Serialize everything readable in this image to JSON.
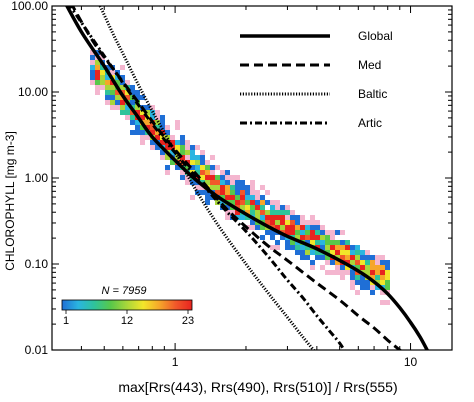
{
  "chart_data": {
    "type": "scatter",
    "xlog": true,
    "ylog": true,
    "xlim": [
      0.3,
      15
    ],
    "ylim": [
      0.01,
      100
    ],
    "x_ticks": [
      1,
      10
    ],
    "x_tick_labels": [
      "1",
      "10"
    ],
    "y_ticks": [
      0.01,
      0.1,
      1,
      10,
      100
    ],
    "y_tick_labels": [
      "0.01",
      "0.10",
      "1.00",
      "10.00",
      "100.00"
    ],
    "xlabel": "max[Rrs(443), Rrs(490), Rrs(510)] / Rrs(555)",
    "ylabel": "CHLOROPHYLL [mg m-3]",
    "legend_position": "top-right",
    "series": [
      {
        "name": "Global",
        "style": "solid",
        "x": [
          0.33,
          0.4,
          0.5,
          0.6,
          0.7,
          0.8,
          1.0,
          1.2,
          1.5,
          2.0,
          2.5,
          3.0,
          4.0,
          5.0,
          6.0,
          7.0,
          8.0,
          9.0,
          10.0,
          11.0,
          12.0
        ],
        "y": [
          130,
          50,
          20,
          9,
          5,
          3,
          1.6,
          1.0,
          0.62,
          0.38,
          0.27,
          0.21,
          0.15,
          0.11,
          0.083,
          0.062,
          0.045,
          0.031,
          0.021,
          0.014,
          0.009
        ]
      },
      {
        "name": "Med",
        "style": "dashed",
        "x": [
          0.36,
          0.45,
          0.55,
          0.7,
          0.9,
          1.2,
          1.6,
          2.0,
          2.5,
          3.0,
          4.0,
          5.0,
          6.0,
          7.0,
          8.0,
          9.0,
          10.0
        ],
        "y": [
          110,
          38,
          18,
          7.5,
          3.0,
          1.2,
          0.48,
          0.27,
          0.16,
          0.11,
          0.06,
          0.038,
          0.025,
          0.018,
          0.013,
          0.01,
          0.008
        ]
      },
      {
        "name": "Baltic",
        "style": "dotted",
        "x": [
          0.48,
          0.55,
          0.6,
          0.7,
          0.8,
          1.0,
          1.2,
          1.5,
          2.0,
          2.5,
          3.0,
          3.5,
          4.0
        ],
        "y": [
          100,
          45,
          28,
          12,
          6,
          2,
          0.8,
          0.3,
          0.1,
          0.045,
          0.024,
          0.014,
          0.009
        ]
      },
      {
        "name": "Artic",
        "style": "dashdot",
        "x": [
          0.35,
          0.45,
          0.55,
          0.7,
          0.9,
          1.2,
          1.6,
          2.0,
          2.5,
          3.0,
          3.5,
          4.0,
          4.5,
          5.0,
          5.5
        ],
        "y": [
          110,
          40,
          18,
          7,
          2.8,
          1.1,
          0.45,
          0.24,
          0.12,
          0.065,
          0.04,
          0.025,
          0.017,
          0.012,
          0.008
        ]
      }
    ],
    "density": {
      "n_text": "N = 7959",
      "colorbar_min": "1",
      "colorbar_mid": "12",
      "colorbar_max": "23",
      "colorbar_colors": [
        "#1f6fd6",
        "#2ab5e0",
        "#2fc39a",
        "#58c84a",
        "#a9d63a",
        "#f2e62a",
        "#f6a62a",
        "#f0582a",
        "#e8241f"
      ],
      "low_density_color": "#f4b6cf",
      "ridge": {
        "x": [
          0.45,
          0.6,
          0.8,
          1.0,
          1.2,
          1.5,
          2.0,
          2.5,
          3.0,
          4.0,
          5.0,
          6.0,
          7.0
        ],
        "y": [
          20,
          9,
          3.8,
          2.0,
          1.3,
          0.8,
          0.48,
          0.34,
          0.26,
          0.18,
          0.13,
          0.1,
          0.075
        ]
      }
    }
  }
}
